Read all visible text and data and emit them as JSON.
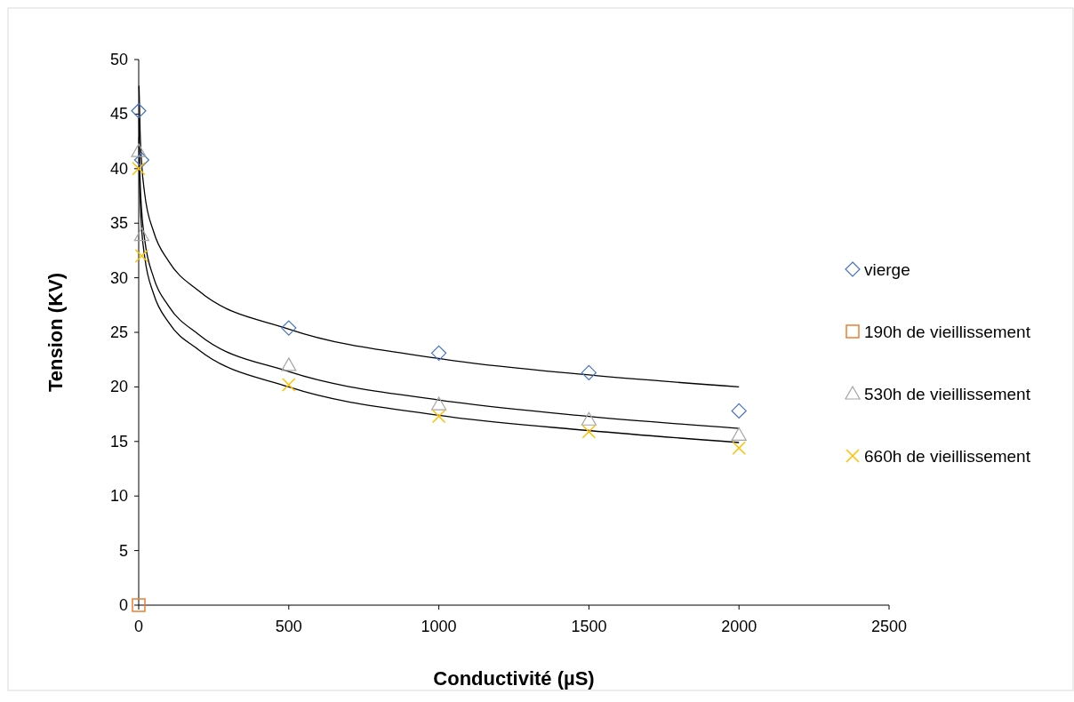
{
  "chart_data": {
    "type": "scatter",
    "xlabel": "Conductivité  (µS)",
    "ylabel": "Tension  (KV)",
    "xlim": [
      0,
      2500
    ],
    "xticks": [
      0,
      500,
      1000,
      1500,
      2000,
      2500
    ],
    "ylim": [
      0,
      50
    ],
    "yticks": [
      0,
      5,
      10,
      15,
      20,
      25,
      30,
      35,
      40,
      45,
      50
    ],
    "grid": false,
    "legend": "right",
    "series": [
      {
        "name": "vierge",
        "color": "#4472c4",
        "marker": "diamond",
        "x": [
          0,
          10,
          500,
          1000,
          1500,
          2000
        ],
        "values": [
          45.3,
          40.8,
          25.4,
          23.1,
          21.3,
          17.8
        ]
      },
      {
        "name": "190h de vieillissement",
        "color": "#ed7d31",
        "marker": "square",
        "x": [
          0
        ],
        "values": [
          0
        ]
      },
      {
        "name": "530h de vieillissement",
        "color": "#a5a5a5",
        "marker": "triangle",
        "x": [
          0,
          10,
          500,
          1000,
          1500,
          2000
        ],
        "values": [
          41.6,
          33.9,
          22.0,
          18.4,
          17.0,
          15.6
        ]
      },
      {
        "name": "660h de vieillissement",
        "color": "#ffc000",
        "marker": "cross",
        "x": [
          0,
          10,
          500,
          1000,
          1500,
          2000
        ],
        "values": [
          40.0,
          32.0,
          20.2,
          17.3,
          15.9,
          14.4
        ]
      },
      {
        "type": "line",
        "color": "#000000",
        "marker": "none",
        "x": [
          1,
          2,
          5,
          10,
          20,
          50,
          100,
          200,
          500,
          1000,
          1500,
          2000
        ],
        "values": [
          47.6,
          46.6,
          43.1,
          40.4,
          37.7,
          34.2,
          31.5,
          28.8,
          25.3,
          22.6,
          21.1,
          20.0
        ]
      },
      {
        "type": "line",
        "color": "#000000",
        "marker": "none",
        "x": [
          1,
          2,
          5,
          10,
          20,
          50,
          100,
          200,
          500,
          1000,
          1500,
          2000
        ],
        "values": [
          44.7,
          42.1,
          38.7,
          36.1,
          33.5,
          30.0,
          27.4,
          24.8,
          21.4,
          18.8,
          17.3,
          16.2
        ]
      },
      {
        "type": "line",
        "color": "#000000",
        "marker": "none",
        "x": [
          1,
          2,
          5,
          10,
          20,
          50,
          100,
          200,
          500,
          1000,
          1500,
          2000
        ],
        "values": [
          42.9,
          40.3,
          37.0,
          34.4,
          31.9,
          28.5,
          25.9,
          23.4,
          20.0,
          17.4,
          16.0,
          14.9
        ]
      }
    ]
  }
}
